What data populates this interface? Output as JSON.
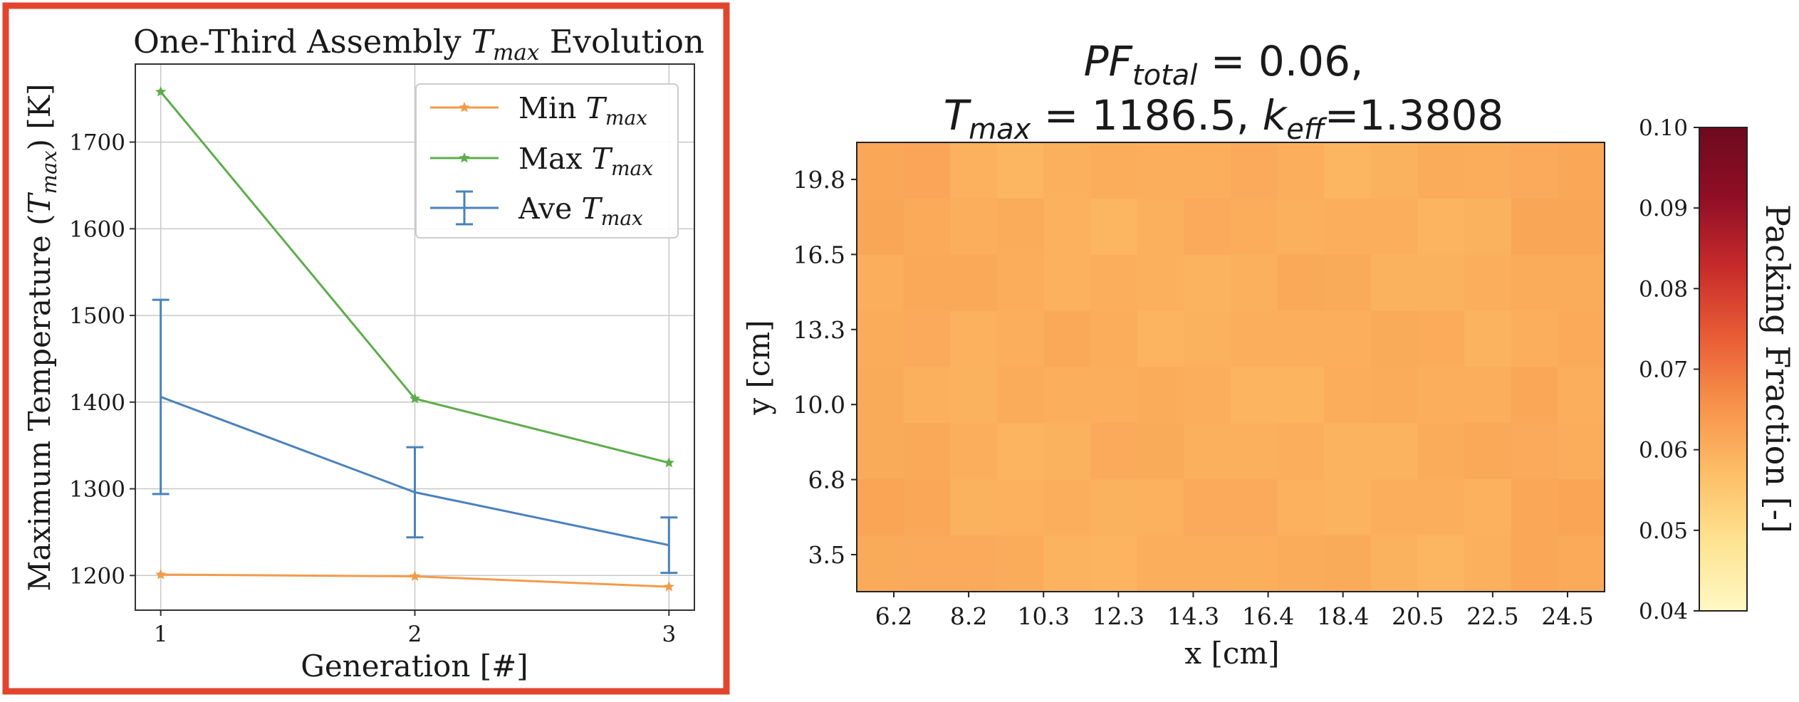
{
  "left_chart": {
    "title_prefix": "One-Third Assembly ",
    "title_var": "T",
    "title_sub": "max",
    "title_suffix": " Evolution",
    "ylabel_prefix": "Maximum Temperature (",
    "ylabel_var": "T",
    "ylabel_sub": "max",
    "ylabel_suffix": ") [K]",
    "xlabel": "Generation [#]",
    "legend": [
      {
        "prefix": "Min ",
        "var": "T",
        "sub": "max"
      },
      {
        "prefix": "Max ",
        "var": "T",
        "sub": "max"
      },
      {
        "prefix": "Ave ",
        "var": "T",
        "sub": "max"
      }
    ],
    "frame_color": "#e2452e"
  },
  "right_chart": {
    "title_line1_var": "PF",
    "title_line1_sub": "total",
    "title_line1_rest": " = 0.06,",
    "title_line2_var": "T",
    "title_line2_sub": "max",
    "title_line2_mid": " = 1186.5, ",
    "title_line2_var2": "k",
    "title_line2_sub2": "eff",
    "title_line2_rest": "=1.3808",
    "xlabel": "x [cm]",
    "ylabel": "y [cm]",
    "colorbar_label": "Packing Fraction [-]"
  },
  "chart_data": [
    {
      "type": "line",
      "x": [
        1,
        2,
        3
      ],
      "xlim": [
        0.9,
        3.1
      ],
      "ylim": [
        1160,
        1790
      ],
      "xticks": [
        1,
        2,
        3
      ],
      "yticks": [
        1200,
        1300,
        1400,
        1500,
        1600,
        1700
      ],
      "grid": true,
      "legend_position": "top-right",
      "series": [
        {
          "name": "Min T_max",
          "color": "#f39b4a",
          "marker": "star",
          "values": [
            1201,
            1199,
            1187
          ]
        },
        {
          "name": "Max T_max",
          "color": "#5cad4a",
          "marker": "star",
          "values": [
            1758,
            1404,
            1330
          ]
        },
        {
          "name": "Ave T_max",
          "color": "#4a82bc",
          "marker": "errorbar",
          "values": [
            1406,
            1296,
            1235
          ],
          "errors": [
            112,
            52,
            32
          ]
        }
      ]
    },
    {
      "type": "heatmap",
      "xtick_labels": [
        "6.2",
        "8.2",
        "10.3",
        "12.3",
        "14.3",
        "16.4",
        "18.4",
        "20.5",
        "22.5",
        "24.5"
      ],
      "ytick_labels": [
        "19.8",
        "16.5",
        "13.3",
        "10.0",
        "6.8",
        "3.5"
      ],
      "value_uniform": 0.06,
      "colorbar": {
        "range": [
          0.04,
          0.1
        ],
        "tick_labels": [
          "0.10",
          "0.09",
          "0.08",
          "0.07",
          "0.06",
          "0.05",
          "0.04"
        ],
        "colormap": [
          "#fff8c4",
          "#fee391",
          "#fdbe66",
          "#f7914a",
          "#e85b35",
          "#c62a2a",
          "#8f0e26",
          "#6e0a1e"
        ]
      }
    }
  ]
}
